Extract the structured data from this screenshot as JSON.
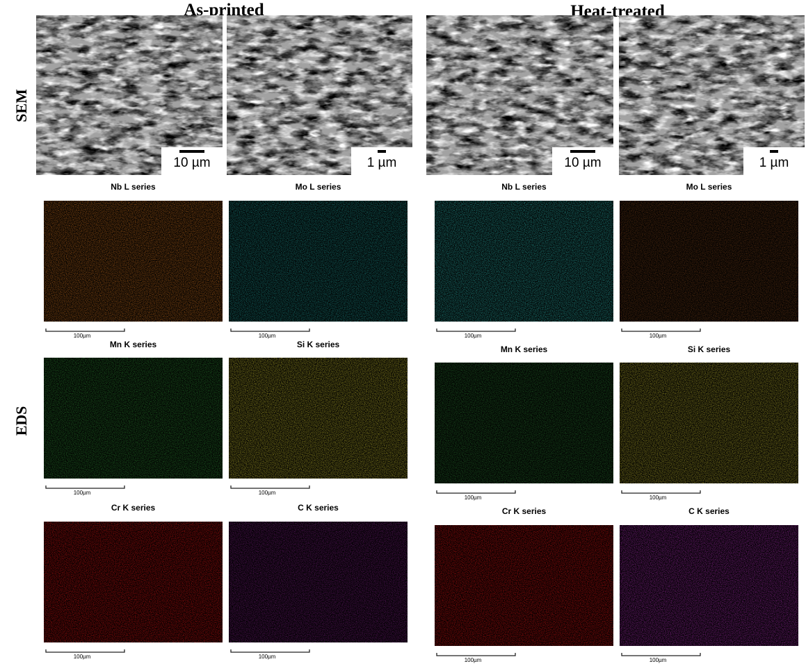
{
  "header": {
    "columns": [
      "As-printed",
      "Heat-treated"
    ]
  },
  "row_labels": [
    "SEM",
    "EDS"
  ],
  "sem_panels": [
    {
      "scale_label": "10 µm"
    },
    {
      "scale_label": "1 µm"
    },
    {
      "scale_label": "10 µm"
    },
    {
      "scale_label": "1 µm"
    }
  ],
  "eds_panels": [
    {
      "title": "Nb L series",
      "scale_label": "100µm",
      "color": "#b8661c"
    },
    {
      "title": "Mo L series",
      "scale_label": "100µm",
      "color": "#1e8a86"
    },
    {
      "title": "Mn K series",
      "scale_label": "100µm",
      "color": "#2a7a2e"
    },
    {
      "title": "Si K series",
      "scale_label": "100µm",
      "color": "#b4ac2c"
    },
    {
      "title": "Cr K series",
      "scale_label": "100µm",
      "color": "#c81212"
    },
    {
      "title": "C K series",
      "scale_label": "100µm",
      "color": "#6e1c74"
    },
    {
      "title": "Nb L series",
      "scale_label": "100µm",
      "color": "#2aa49e"
    },
    {
      "title": "Mo L series",
      "scale_label": "100µm",
      "color": "#6a3a18"
    },
    {
      "title": "Mn K series",
      "scale_label": "100µm",
      "color": "#266a2c"
    },
    {
      "title": "Si K series",
      "scale_label": "100µm",
      "color": "#aca42c"
    },
    {
      "title": "Cr K series",
      "scale_label": "100µm",
      "color": "#c81212"
    },
    {
      "title": "C K series",
      "scale_label": "100µm",
      "color": "#9a2aa2"
    }
  ]
}
